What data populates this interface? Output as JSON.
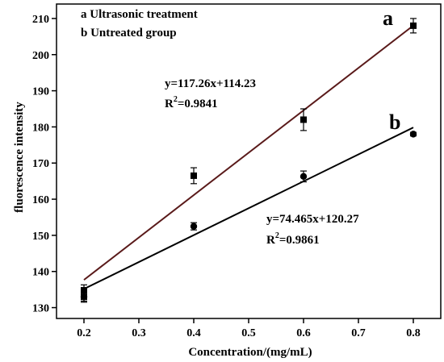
{
  "chart_data": {
    "type": "scatter",
    "xlabel": "Concentration/(mg/mL)",
    "ylabel": "fluorescence intensity",
    "xlim": [
      0.15,
      0.85
    ],
    "ylim": [
      127,
      214
    ],
    "x_ticks": [
      "0.2",
      "0.3",
      "0.4",
      "0.5",
      "0.6",
      "0.7",
      "0.8"
    ],
    "y_ticks": [
      "130",
      "140",
      "150",
      "160",
      "170",
      "180",
      "190",
      "200",
      "210"
    ],
    "grid": false,
    "legend": {
      "placement": "top-left",
      "entries": [
        "a Ultrasonic treatment",
        "b Untreated group"
      ]
    },
    "series": [
      {
        "tag": "a",
        "marker": "square",
        "line_color": "#5a1a1a",
        "x": [
          0.2,
          0.2,
          0.4,
          0.6,
          0.8
        ],
        "y": [
          133.0,
          134.8,
          166.5,
          182.0,
          208.0
        ],
        "yerr": [
          1.5,
          1.5,
          2.2,
          3.0,
          2.0
        ],
        "fit": {
          "slope": 117.26,
          "intercept": 114.23
        },
        "equation": "y=117.26x+114.23",
        "r2_prefix": "R",
        "r2_exp": "2",
        "r2_value": "=0.9841"
      },
      {
        "tag": "b",
        "marker": "circle",
        "line_color": "#000000",
        "x": [
          0.2,
          0.4,
          0.6,
          0.8
        ],
        "y": [
          133.0,
          152.5,
          166.3,
          178.0
        ],
        "yerr": [
          1.2,
          1.0,
          1.5,
          0.5
        ],
        "fit": {
          "slope": 74.465,
          "intercept": 120.27
        },
        "equation": "y=74.465x+120.27",
        "r2_prefix": "R",
        "r2_exp": "2",
        "r2_value": "=0.9861"
      }
    ]
  }
}
